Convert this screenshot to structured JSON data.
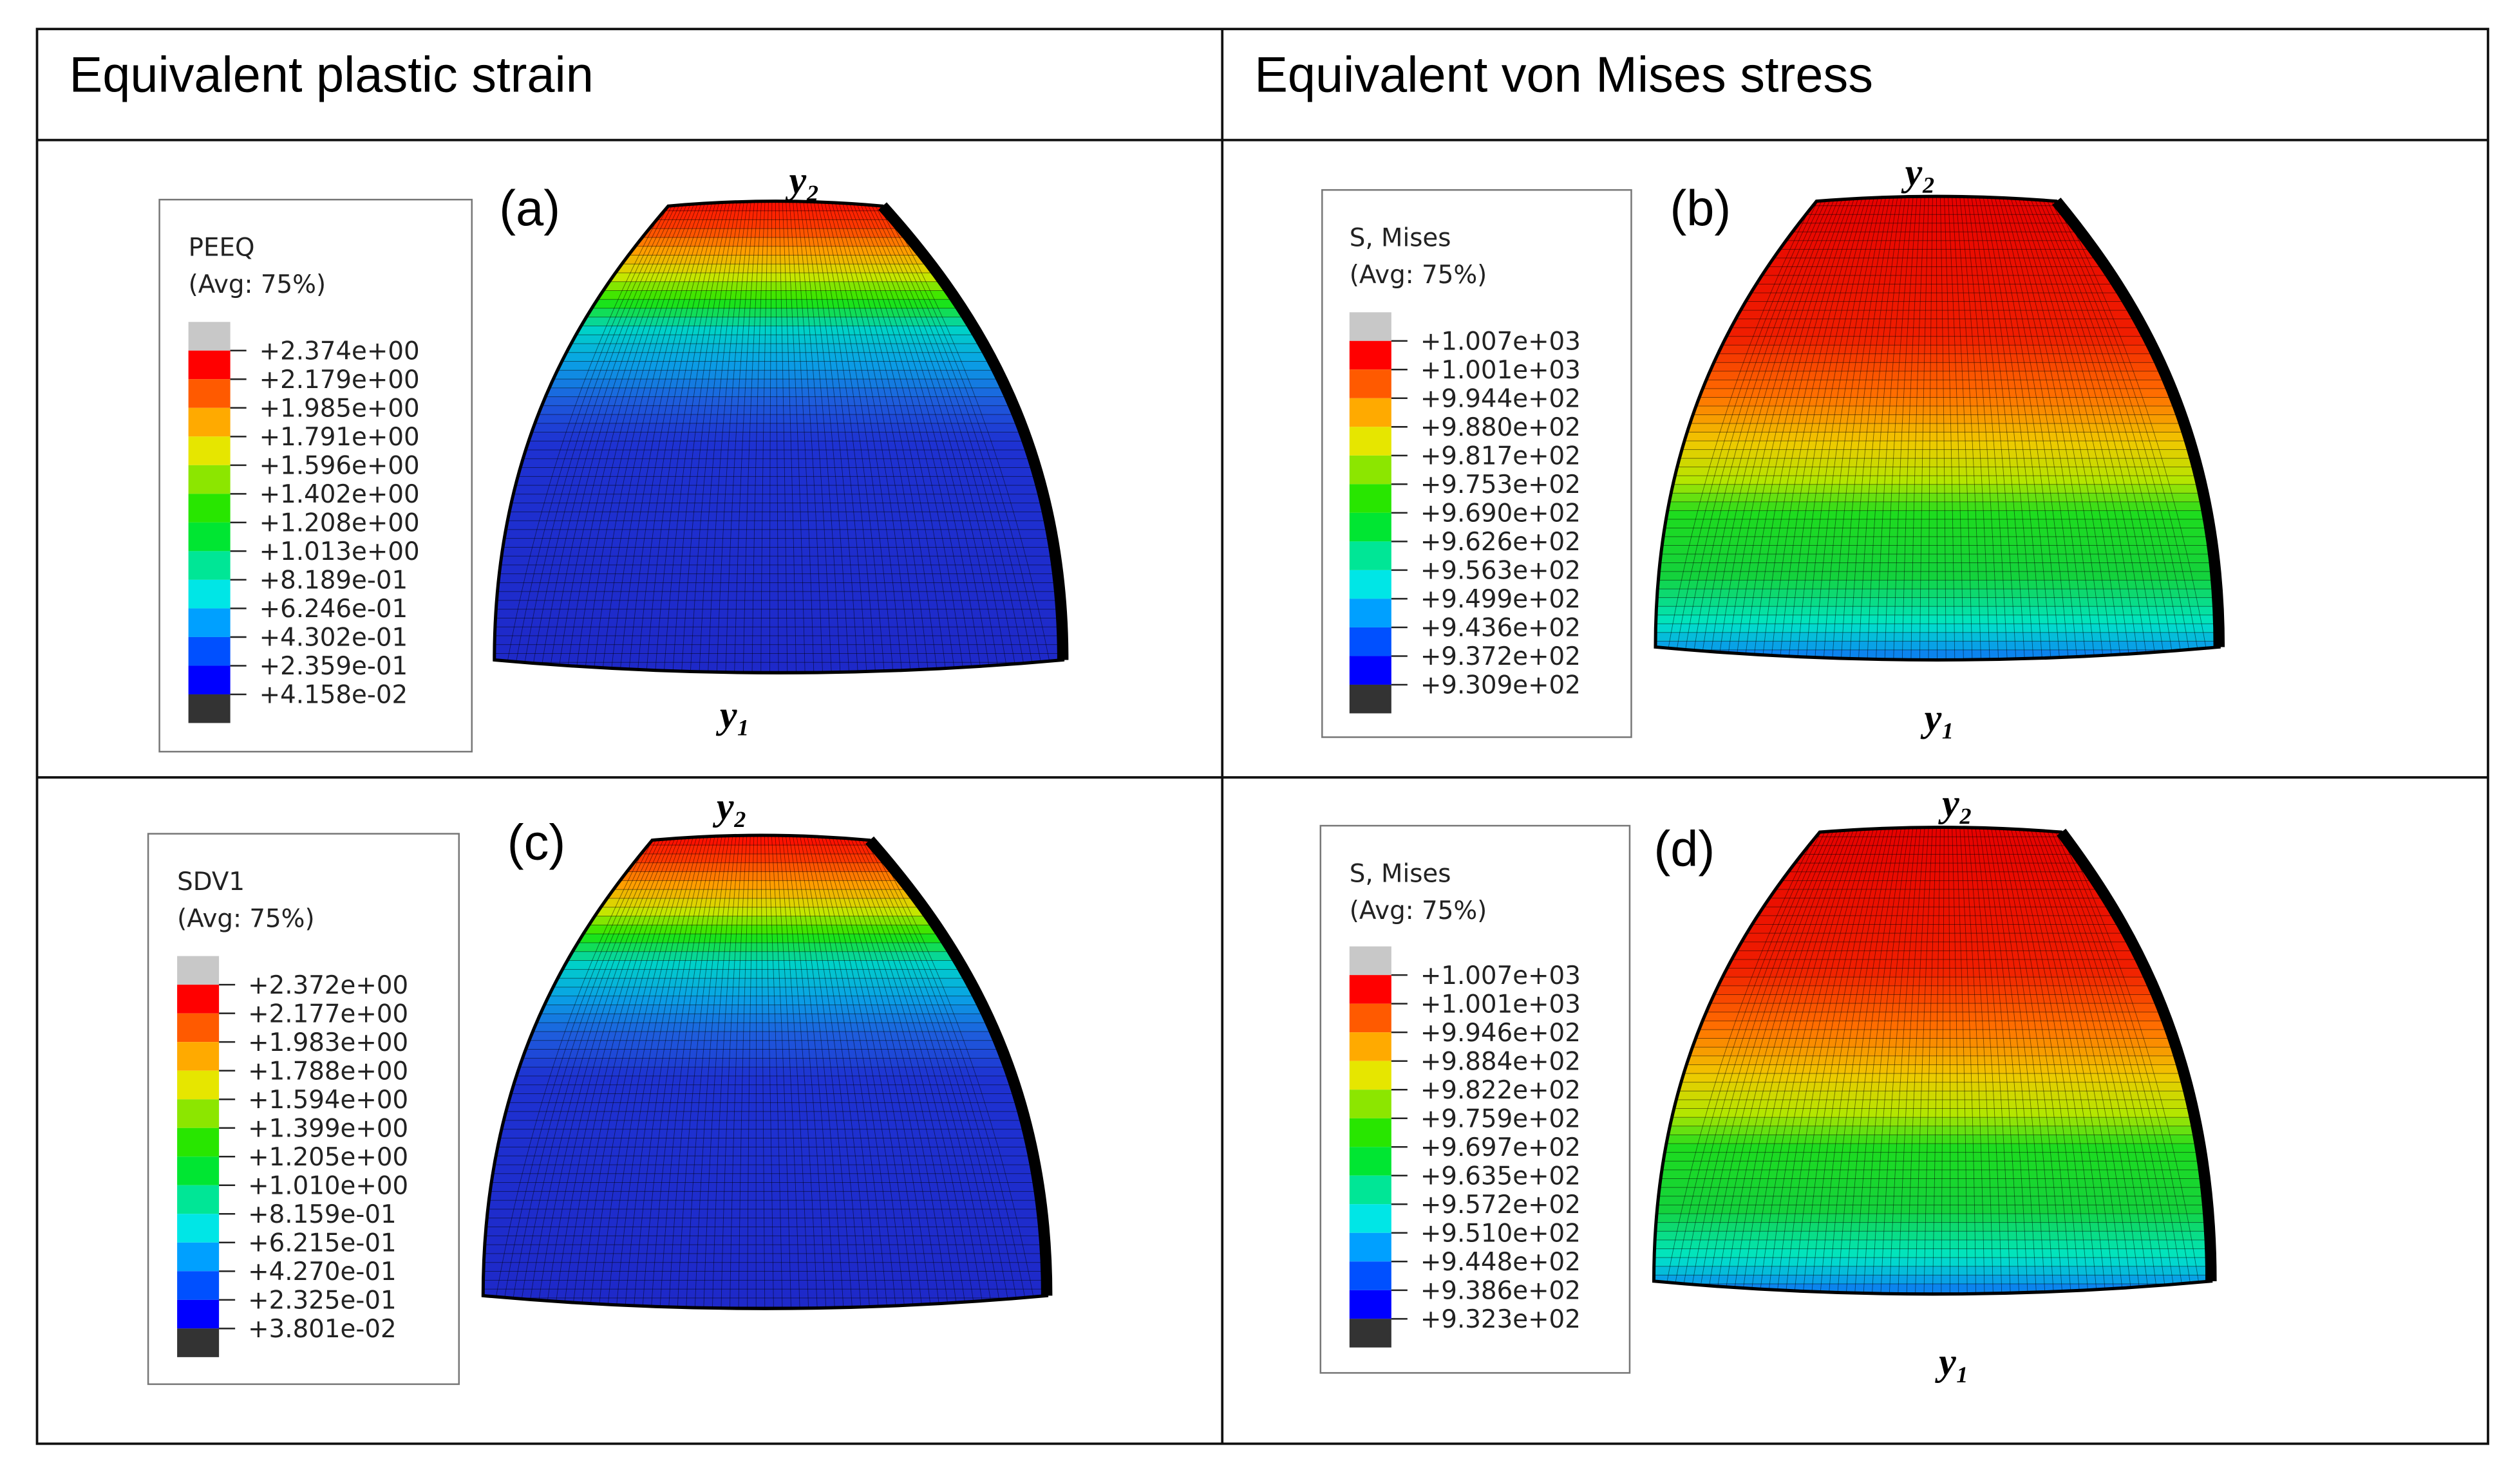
{
  "headers": [
    "Equivalent plastic strain",
    "Equivalent von Mises stress"
  ],
  "legend_colors": [
    "#c8c8c8",
    "#ff0000",
    "#ff5a00",
    "#ffaa00",
    "#e6e600",
    "#8ce600",
    "#28e600",
    "#00e632",
    "#00e696",
    "#00e6e6",
    "#00a0ff",
    "#0050ff",
    "#0000ff",
    "#333333"
  ],
  "panels": [
    {
      "label": "(a)",
      "top_label": "y₂",
      "bottom_label": "y₁",
      "legend": {
        "title": "PEEQ",
        "subtitle": "(Avg: 75%)",
        "ticks": [
          "+2.374e+00",
          "+2.179e+00",
          "+1.985e+00",
          "+1.791e+00",
          "+1.596e+00",
          "+1.402e+00",
          "+1.208e+00",
          "+1.013e+00",
          "+8.189e-01",
          "+6.246e-01",
          "+4.302e-01",
          "+2.359e-01",
          "+4.158e-02"
        ]
      }
    },
    {
      "label": "(b)",
      "top_label": "y₂",
      "bottom_label": "y₁",
      "legend": {
        "title": "S, Mises",
        "subtitle": "(Avg: 75%)",
        "ticks": [
          "+1.007e+03",
          "+1.001e+03",
          "+9.944e+02",
          "+9.880e+02",
          "+9.817e+02",
          "+9.753e+02",
          "+9.690e+02",
          "+9.626e+02",
          "+9.563e+02",
          "+9.499e+02",
          "+9.436e+02",
          "+9.372e+02",
          "+9.309e+02"
        ]
      }
    },
    {
      "label": "(c)",
      "top_label": "y₂",
      "legend": {
        "title": "SDV1",
        "subtitle": "(Avg: 75%)",
        "ticks": [
          "+2.372e+00",
          "+2.177e+00",
          "+1.983e+00",
          "+1.788e+00",
          "+1.594e+00",
          "+1.399e+00",
          "+1.205e+00",
          "+1.010e+00",
          "+8.159e-01",
          "+6.215e-01",
          "+4.270e-01",
          "+2.325e-01",
          "+3.801e-02"
        ]
      }
    },
    {
      "label": "(d)",
      "top_label": "y₂",
      "bottom_label": "y₁",
      "legend": {
        "title": "S, Mises",
        "subtitle": "(Avg: 75%)",
        "ticks": [
          "+1.007e+03",
          "+1.001e+03",
          "+9.946e+02",
          "+9.884e+02",
          "+9.822e+02",
          "+9.759e+02",
          "+9.697e+02",
          "+9.635e+02",
          "+9.572e+02",
          "+9.510e+02",
          "+9.448e+02",
          "+9.386e+02",
          "+9.323e+02"
        ]
      }
    }
  ]
}
